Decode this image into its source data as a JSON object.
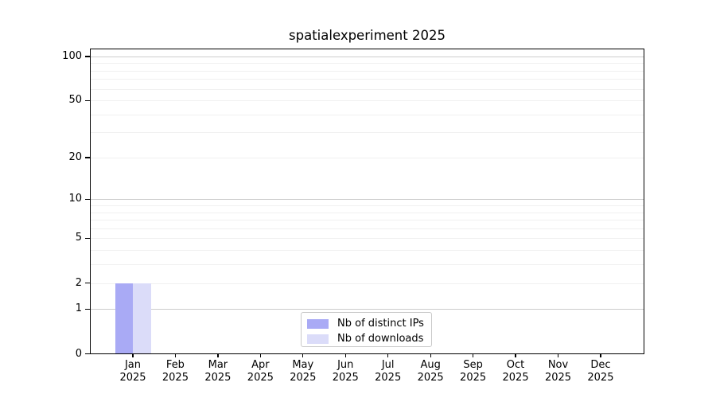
{
  "chart_data": {
    "type": "bar",
    "title": "spatialexperiment 2025",
    "categories": [
      "Jan",
      "Feb",
      "Mar",
      "Apr",
      "May",
      "Jun",
      "Jul",
      "Aug",
      "Sep",
      "Oct",
      "Nov",
      "Dec"
    ],
    "x_tick_year": "2025",
    "series": [
      {
        "name": "Nb of distinct IPs",
        "color": "#a9aaf5",
        "values": [
          2,
          0,
          0,
          0,
          0,
          0,
          0,
          0,
          0,
          0,
          0,
          0
        ]
      },
      {
        "name": "Nb of downloads",
        "color": "#dbdcf9",
        "values": [
          2,
          0,
          0,
          0,
          0,
          0,
          0,
          0,
          0,
          0,
          0,
          0
        ]
      }
    ],
    "yscale": "log1p",
    "ylim": [
      0,
      113
    ],
    "yticks": [
      0,
      1,
      2,
      5,
      10,
      20,
      50,
      100
    ],
    "minor_yticks": [
      3,
      4,
      6,
      7,
      8,
      9,
      30,
      40,
      60,
      70,
      80,
      90
    ],
    "grid": "horizontal",
    "legend_position": "lower center",
    "colors": {
      "axis": "#000000",
      "major_grid": "#cccccc",
      "minor_grid": "#f0f0f0",
      "text": "#000000",
      "legend_border": "#c9c9c9",
      "background": "#ffffff"
    }
  }
}
